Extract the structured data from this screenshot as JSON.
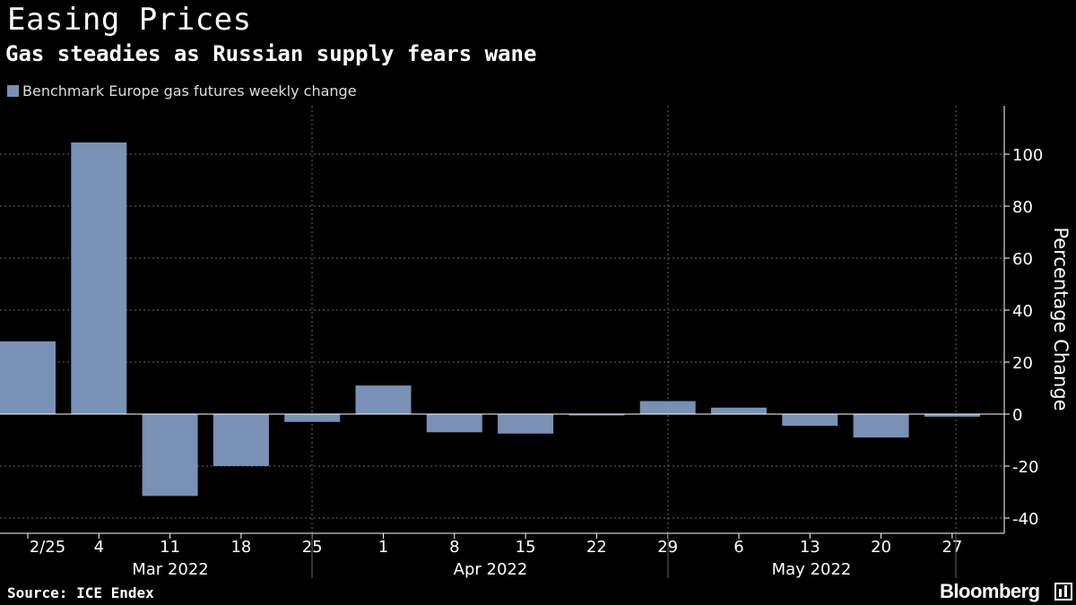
{
  "header": {
    "title": "Easing Prices",
    "subtitle": "Gas steadies as Russian supply fears wane"
  },
  "footer": {
    "source": "Source: ICE Endex",
    "brand": "Bloomberg"
  },
  "colors": {
    "background": "#000000",
    "bar": "#7891b4",
    "grid": "#666666",
    "text": "#ffffff"
  },
  "chart_data": {
    "type": "bar",
    "legend": "top-left",
    "grid": true,
    "categories": [
      "2/25",
      "4",
      "11",
      "18",
      "25",
      "1",
      "8",
      "15",
      "22",
      "29",
      "6",
      "13",
      "20",
      "27"
    ],
    "series": [
      {
        "name": "Benchmark Europe gas futures weekly change",
        "values": [
          28,
          104.5,
          -31.5,
          -20,
          -3,
          11,
          -7,
          -7.5,
          -0.5,
          5,
          2.5,
          -4.5,
          -9,
          -1
        ]
      }
    ],
    "month_labels": [
      "Mar 2022",
      "Apr 2022",
      "May 2022"
    ],
    "ylabel": "Percentage Change",
    "yticks": [
      100,
      80,
      60,
      40,
      20,
      0,
      -20,
      -40
    ],
    "ylim": [
      -45,
      118
    ]
  }
}
